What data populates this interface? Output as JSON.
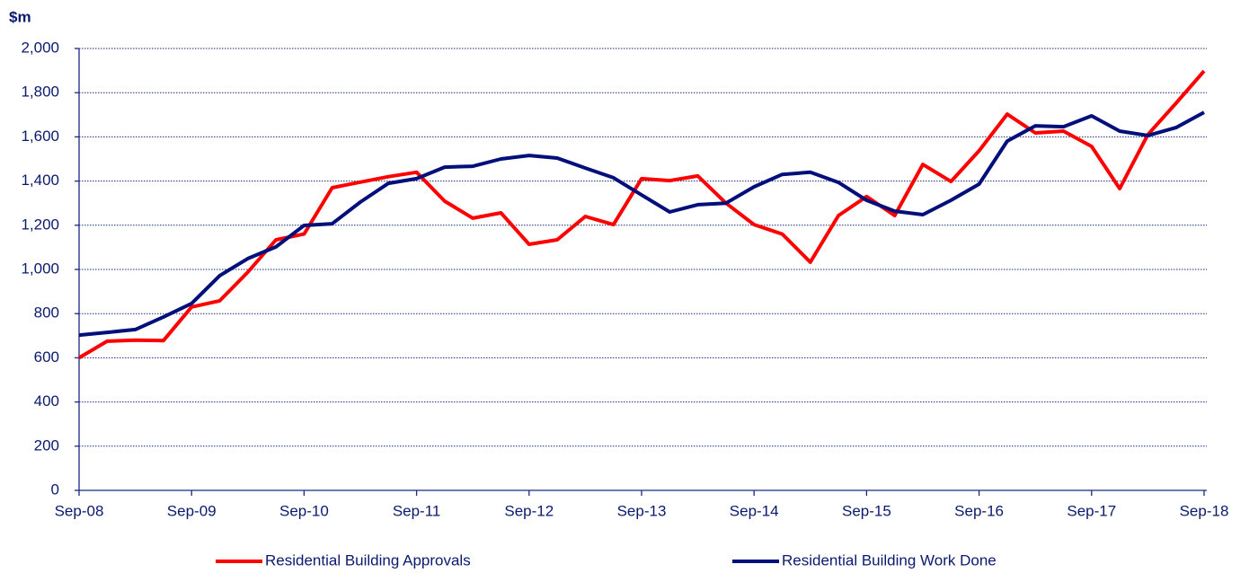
{
  "chart_data": {
    "type": "line",
    "y_label": "$m",
    "categories": [
      "Sep-08",
      null,
      null,
      null,
      "Sep-09",
      null,
      null,
      null,
      "Sep-10",
      null,
      null,
      null,
      "Sep-11",
      null,
      null,
      null,
      "Sep-12",
      null,
      null,
      null,
      "Sep-13",
      null,
      null,
      null,
      "Sep-14",
      null,
      null,
      null,
      "Sep-15",
      null,
      null,
      null,
      "Sep-16",
      null,
      null,
      null,
      "Sep-17",
      null,
      null,
      null,
      "Sep-18"
    ],
    "series": [
      {
        "name": "Residential Building Approvals",
        "color": "#ff0000",
        "values": [
          600,
          675,
          680,
          678,
          830,
          858,
          988,
          1134,
          1160,
          1370,
          1395,
          1420,
          1440,
          1309,
          1232,
          1256,
          1114,
          1134,
          1240,
          1203,
          1411,
          1402,
          1423,
          1300,
          1203,
          1160,
          1033,
          1244,
          1330,
          1244,
          1475,
          1398,
          1537,
          1703,
          1618,
          1626,
          1557,
          1366,
          1610,
          1752,
          1898
        ]
      },
      {
        "name": "Residential Building Work Done",
        "color": "#000f7a",
        "values": [
          703,
          715,
          728,
          785,
          846,
          972,
          1049,
          1102,
          1199,
          1207,
          1305,
          1390,
          1411,
          1463,
          1467,
          1500,
          1516,
          1504,
          1459,
          1415,
          1337,
          1260,
          1293,
          1300,
          1374,
          1430,
          1440,
          1394,
          1313,
          1264,
          1248,
          1313,
          1386,
          1581,
          1650,
          1646,
          1695,
          1626,
          1606,
          1642,
          1711
        ]
      }
    ],
    "ylim": [
      0,
      2000
    ],
    "yticks": [
      0,
      200,
      400,
      600,
      800,
      {
        "value": 1000,
        "label": "1,000"
      },
      {
        "value": 1200,
        "label": "1,200"
      },
      {
        "value": 1400,
        "label": "1,400"
      },
      {
        "value": 1600,
        "label": "1,600"
      },
      {
        "value": 1800,
        "label": "1,800"
      },
      {
        "value": 2000,
        "label": "2,000"
      }
    ],
    "grid": true
  }
}
